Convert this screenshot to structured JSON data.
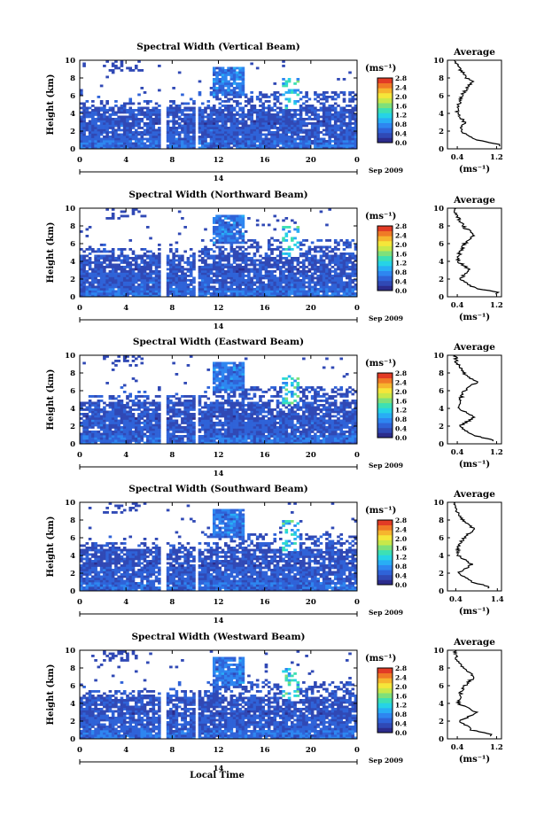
{
  "figure": {
    "bottom_xlabel": "Local Time",
    "date_label": "Sep 2009",
    "day_label": "14",
    "height_label": "Height (km)",
    "unit_label": "(ms⁻¹)",
    "average_title": "Average"
  },
  "colormap": [
    "#2c2c8c",
    "#3049b5",
    "#2f63d8",
    "#2e86f0",
    "#28aef5",
    "#26d3e6",
    "#3de0b4",
    "#7fe07a",
    "#c8e84a",
    "#f5e63a",
    "#f6b52e",
    "#f07a26",
    "#e23b25"
  ],
  "chart_data": [
    {
      "type": "heatmap",
      "title": "Spectral Width (Vertical Beam)",
      "ylabel": "Height (km)",
      "xlim": [
        0,
        24
      ],
      "ylim": [
        0,
        10
      ],
      "xticks": [
        "0",
        "4",
        "8",
        "12",
        "16",
        "20",
        "0"
      ],
      "yticks": [
        "0",
        "2",
        "4",
        "6",
        "8",
        "10"
      ],
      "colorbar": {
        "ticks": [
          "0.0",
          "0.4",
          "0.8",
          "1.2",
          "1.6",
          "2.0",
          "2.4",
          "2.8"
        ],
        "range": [
          0,
          2.8
        ]
      },
      "average": {
        "title": "Average",
        "xlabel": "(ms⁻¹)",
        "xticks": [
          "0.4",
          "1.2"
        ],
        "xlim": [
          0.2,
          1.3
        ],
        "profile": [
          [
            0.5,
            1.25
          ],
          [
            1,
            0.8
          ],
          [
            2,
            0.45
          ],
          [
            3,
            0.55
          ],
          [
            4,
            0.4
          ],
          [
            5,
            0.42
          ],
          [
            6,
            0.5
          ],
          [
            7,
            0.6
          ],
          [
            7.6,
            0.75
          ],
          [
            8,
            0.6
          ],
          [
            9,
            0.45
          ],
          [
            10,
            0.35
          ]
        ]
      }
    },
    {
      "type": "heatmap",
      "title": "Spectral Width (Northward Beam)",
      "ylabel": "Height (km)",
      "xlim": [
        0,
        24
      ],
      "ylim": [
        0,
        10
      ],
      "xticks": [
        "0",
        "4",
        "8",
        "12",
        "16",
        "20",
        "0"
      ],
      "yticks": [
        "0",
        "2",
        "4",
        "6",
        "8",
        "10"
      ],
      "colorbar": {
        "ticks": [
          "0.0",
          "0.4",
          "0.8",
          "1.2",
          "1.6",
          "2.0",
          "2.4",
          "2.8"
        ],
        "range": [
          0,
          2.8
        ]
      },
      "average": {
        "title": "Average",
        "xlabel": "(ms⁻¹)",
        "xticks": [
          "0.4",
          "1.2"
        ],
        "xlim": [
          0.2,
          1.3
        ],
        "profile": [
          [
            0.5,
            1.2
          ],
          [
            1,
            0.75
          ],
          [
            2,
            0.45
          ],
          [
            3,
            0.65
          ],
          [
            4,
            0.42
          ],
          [
            5,
            0.45
          ],
          [
            6,
            0.55
          ],
          [
            7,
            0.75
          ],
          [
            7.8,
            0.55
          ],
          [
            9,
            0.4
          ],
          [
            10,
            0.35
          ]
        ]
      }
    },
    {
      "type": "heatmap",
      "title": "Spectral Width (Eastward Beam)",
      "ylabel": "Height (km)",
      "xlim": [
        0,
        24
      ],
      "ylim": [
        0,
        10
      ],
      "xticks": [
        "0",
        "4",
        "8",
        "12",
        "16",
        "20",
        "0"
      ],
      "yticks": [
        "0",
        "2",
        "4",
        "6",
        "8",
        "10"
      ],
      "colorbar": {
        "ticks": [
          "0.0",
          "0.4",
          "0.8",
          "1.2",
          "1.6",
          "2.0",
          "2.4",
          "2.8"
        ],
        "range": [
          0,
          2.8
        ]
      },
      "average": {
        "title": "Average",
        "xlabel": "(ms⁻¹)",
        "xticks": [
          "0.4",
          "1.2"
        ],
        "xlim": [
          0.2,
          1.3
        ],
        "profile": [
          [
            0.5,
            1.1
          ],
          [
            1,
            0.7
          ],
          [
            2,
            0.45
          ],
          [
            3,
            0.75
          ],
          [
            4,
            0.42
          ],
          [
            5,
            0.45
          ],
          [
            6,
            0.55
          ],
          [
            7,
            0.8
          ],
          [
            7.8,
            0.55
          ],
          [
            9,
            0.4
          ],
          [
            10,
            0.35
          ]
        ]
      }
    },
    {
      "type": "heatmap",
      "title": "Spectral Width (Southward Beam)",
      "ylabel": "Height (km)",
      "xlim": [
        0,
        24
      ],
      "ylim": [
        0,
        10
      ],
      "xticks": [
        "0",
        "4",
        "8",
        "12",
        "16",
        "20",
        "0"
      ],
      "yticks": [
        "0",
        "2",
        "4",
        "6",
        "8",
        "10"
      ],
      "colorbar": {
        "ticks": [
          "0.0",
          "0.4",
          "0.8",
          "1.2",
          "1.6",
          "2.0",
          "2.4",
          "2.8"
        ],
        "range": [
          0,
          2.8
        ]
      },
      "average": {
        "title": "Average",
        "xlabel": "(ms⁻¹)",
        "xticks": [
          "0.4",
          "1.4"
        ],
        "xlim": [
          0.2,
          1.5
        ],
        "profile": [
          [
            0.5,
            1.2
          ],
          [
            1,
            0.8
          ],
          [
            2,
            0.45
          ],
          [
            3,
            0.8
          ],
          [
            4,
            0.45
          ],
          [
            5,
            0.45
          ],
          [
            6,
            0.6
          ],
          [
            7,
            0.85
          ],
          [
            7.8,
            0.6
          ],
          [
            9,
            0.42
          ],
          [
            10,
            0.35
          ]
        ]
      }
    },
    {
      "type": "heatmap",
      "title": "Spectral Width (Westward Beam)",
      "ylabel": "Height (km)",
      "xlim": [
        0,
        24
      ],
      "ylim": [
        0,
        10
      ],
      "xticks": [
        "0",
        "4",
        "8",
        "12",
        "16",
        "20",
        "0"
      ],
      "yticks": [
        "0",
        "2",
        "4",
        "6",
        "8",
        "10"
      ],
      "colorbar": {
        "ticks": [
          "0.0",
          "0.4",
          "0.8",
          "1.2",
          "1.6",
          "2.0",
          "2.4",
          "2.8"
        ],
        "range": [
          0,
          2.8
        ]
      },
      "average": {
        "title": "Average",
        "xlabel": "(ms⁻¹)",
        "xticks": [
          "0.4",
          "1.2"
        ],
        "xlim": [
          0.2,
          1.3
        ],
        "profile": [
          [
            0.5,
            1.1
          ],
          [
            1,
            0.7
          ],
          [
            2,
            0.45
          ],
          [
            3,
            0.8
          ],
          [
            4,
            0.42
          ],
          [
            5,
            0.45
          ],
          [
            6,
            0.55
          ],
          [
            7,
            0.75
          ],
          [
            7.8,
            0.55
          ],
          [
            9,
            0.4
          ],
          [
            10,
            0.35
          ]
        ]
      }
    }
  ]
}
